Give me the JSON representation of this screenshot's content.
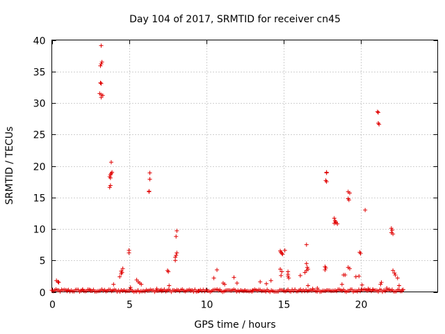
{
  "chart_data": {
    "type": "scatter",
    "title": "Day 104 of 2017, SRMTID for receiver cn45",
    "xlabel": "GPS time / hours",
    "ylabel": "SRMTID / TECUs",
    "xlim": [
      0,
      25
    ],
    "ylim": [
      0,
      40
    ],
    "xticks": [
      0,
      5,
      10,
      15,
      20
    ],
    "yticks": [
      0,
      5,
      10,
      15,
      20,
      25,
      30,
      35,
      40
    ],
    "grid": true,
    "marker": "+",
    "colors": {
      "marker": "#e00000",
      "grid": "#a0a0a0",
      "axes": "#000000"
    },
    "series": [
      {
        "name": "SRMTID",
        "points": [
          [
            3.2,
            39.1
          ],
          [
            3.25,
            36.5
          ],
          [
            3.2,
            36.2
          ],
          [
            3.15,
            35.9
          ],
          [
            3.15,
            33.2
          ],
          [
            3.2,
            33.1
          ],
          [
            3.1,
            31.5
          ],
          [
            3.2,
            31.3
          ],
          [
            3.3,
            31.2
          ],
          [
            3.2,
            30.9
          ],
          [
            3.85,
            20.6
          ],
          [
            3.9,
            19.0
          ],
          [
            3.85,
            18.8
          ],
          [
            3.8,
            18.6
          ],
          [
            3.75,
            18.3
          ],
          [
            3.8,
            18.1
          ],
          [
            3.8,
            16.9
          ],
          [
            3.75,
            16.6
          ],
          [
            6.35,
            18.9
          ],
          [
            6.35,
            17.9
          ],
          [
            6.3,
            16.0
          ],
          [
            6.3,
            15.9
          ],
          [
            8.1,
            9.7
          ],
          [
            8.05,
            8.8
          ],
          [
            8.1,
            6.2
          ],
          [
            8.05,
            5.8
          ],
          [
            8.0,
            5.5
          ],
          [
            8.0,
            5.0
          ],
          [
            7.5,
            3.4
          ],
          [
            7.55,
            3.2
          ],
          [
            7.6,
            1.0
          ],
          [
            4.6,
            3.7
          ],
          [
            4.5,
            3.3
          ],
          [
            4.55,
            3.1
          ],
          [
            4.5,
            2.9
          ],
          [
            4.4,
            2.4
          ],
          [
            4.0,
            1.2
          ],
          [
            5.0,
            6.6
          ],
          [
            5.0,
            6.2
          ],
          [
            5.1,
            0.7
          ],
          [
            5.5,
            1.9
          ],
          [
            5.6,
            1.6
          ],
          [
            5.7,
            1.4
          ],
          [
            5.8,
            1.2
          ],
          [
            0.3,
            1.8
          ],
          [
            0.4,
            1.6
          ],
          [
            0.45,
            1.5
          ],
          [
            10.7,
            3.5
          ],
          [
            10.5,
            2.2
          ],
          [
            11.1,
            1.4
          ],
          [
            11.2,
            1.2
          ],
          [
            11.8,
            2.3
          ],
          [
            12.0,
            1.4
          ],
          [
            13.5,
            1.6
          ],
          [
            13.9,
            1.3
          ],
          [
            14.2,
            1.8
          ],
          [
            14.8,
            6.5
          ],
          [
            14.85,
            6.3
          ],
          [
            14.9,
            6.1
          ],
          [
            14.95,
            6.0
          ],
          [
            15.1,
            6.6
          ],
          [
            14.8,
            3.6
          ],
          [
            14.9,
            3.2
          ],
          [
            14.85,
            2.6
          ],
          [
            15.3,
            3.2
          ],
          [
            15.3,
            2.8
          ],
          [
            15.3,
            2.5
          ],
          [
            15.35,
            2.2
          ],
          [
            16.5,
            7.5
          ],
          [
            16.5,
            4.5
          ],
          [
            16.55,
            3.9
          ],
          [
            16.6,
            3.6
          ],
          [
            16.5,
            3.4
          ],
          [
            16.4,
            3.1
          ],
          [
            16.1,
            2.6
          ],
          [
            16.6,
            1.0
          ],
          [
            17.8,
            19.0
          ],
          [
            17.8,
            18.9
          ],
          [
            17.75,
            17.7
          ],
          [
            17.8,
            17.5
          ],
          [
            17.7,
            4.0
          ],
          [
            17.75,
            3.8
          ],
          [
            17.7,
            3.5
          ],
          [
            18.3,
            11.7
          ],
          [
            18.35,
            11.3
          ],
          [
            18.4,
            11.0
          ],
          [
            18.5,
            10.8
          ],
          [
            18.3,
            10.9
          ],
          [
            18.4,
            11.1
          ],
          [
            19.2,
            15.9
          ],
          [
            19.3,
            15.7
          ],
          [
            19.2,
            14.8
          ],
          [
            19.25,
            14.6
          ],
          [
            19.2,
            3.9
          ],
          [
            19.3,
            3.7
          ],
          [
            18.9,
            2.7
          ],
          [
            19.0,
            2.7
          ],
          [
            18.8,
            1.2
          ],
          [
            19.7,
            2.4
          ],
          [
            19.9,
            2.5
          ],
          [
            19.95,
            6.3
          ],
          [
            20.0,
            6.1
          ],
          [
            20.1,
            1.1
          ],
          [
            20.3,
            13.0
          ],
          [
            21.1,
            28.6
          ],
          [
            21.15,
            28.5
          ],
          [
            21.15,
            26.8
          ],
          [
            21.2,
            26.6
          ],
          [
            21.35,
            1.5
          ],
          [
            21.3,
            1.2
          ],
          [
            22.0,
            10.1
          ],
          [
            22.05,
            9.8
          ],
          [
            22.0,
            9.4
          ],
          [
            22.1,
            9.2
          ],
          [
            22.1,
            3.4
          ],
          [
            22.2,
            3.0
          ],
          [
            22.25,
            2.7
          ],
          [
            22.4,
            2.2
          ],
          [
            22.5,
            1.0
          ],
          [
            2.0,
            0.4
          ],
          [
            2.5,
            0.3
          ],
          [
            1.0,
            0.25
          ],
          [
            6.8,
            0.5
          ],
          [
            7.1,
            0.35
          ],
          [
            9.0,
            0.2
          ],
          [
            9.5,
            0.15
          ],
          [
            12.5,
            0.2
          ],
          [
            13.0,
            0.25
          ],
          [
            16.9,
            0.5
          ],
          [
            17.2,
            0.6
          ],
          [
            20.5,
            0.5
          ],
          [
            20.8,
            0.4
          ],
          [
            21.7,
            0.6
          ],
          [
            22.7,
            0.3
          ]
        ],
        "baseline_cluster": {
          "x_range": [
            0.0,
            22.8
          ],
          "y_range": [
            0.0,
            0.4
          ]
        }
      }
    ]
  }
}
